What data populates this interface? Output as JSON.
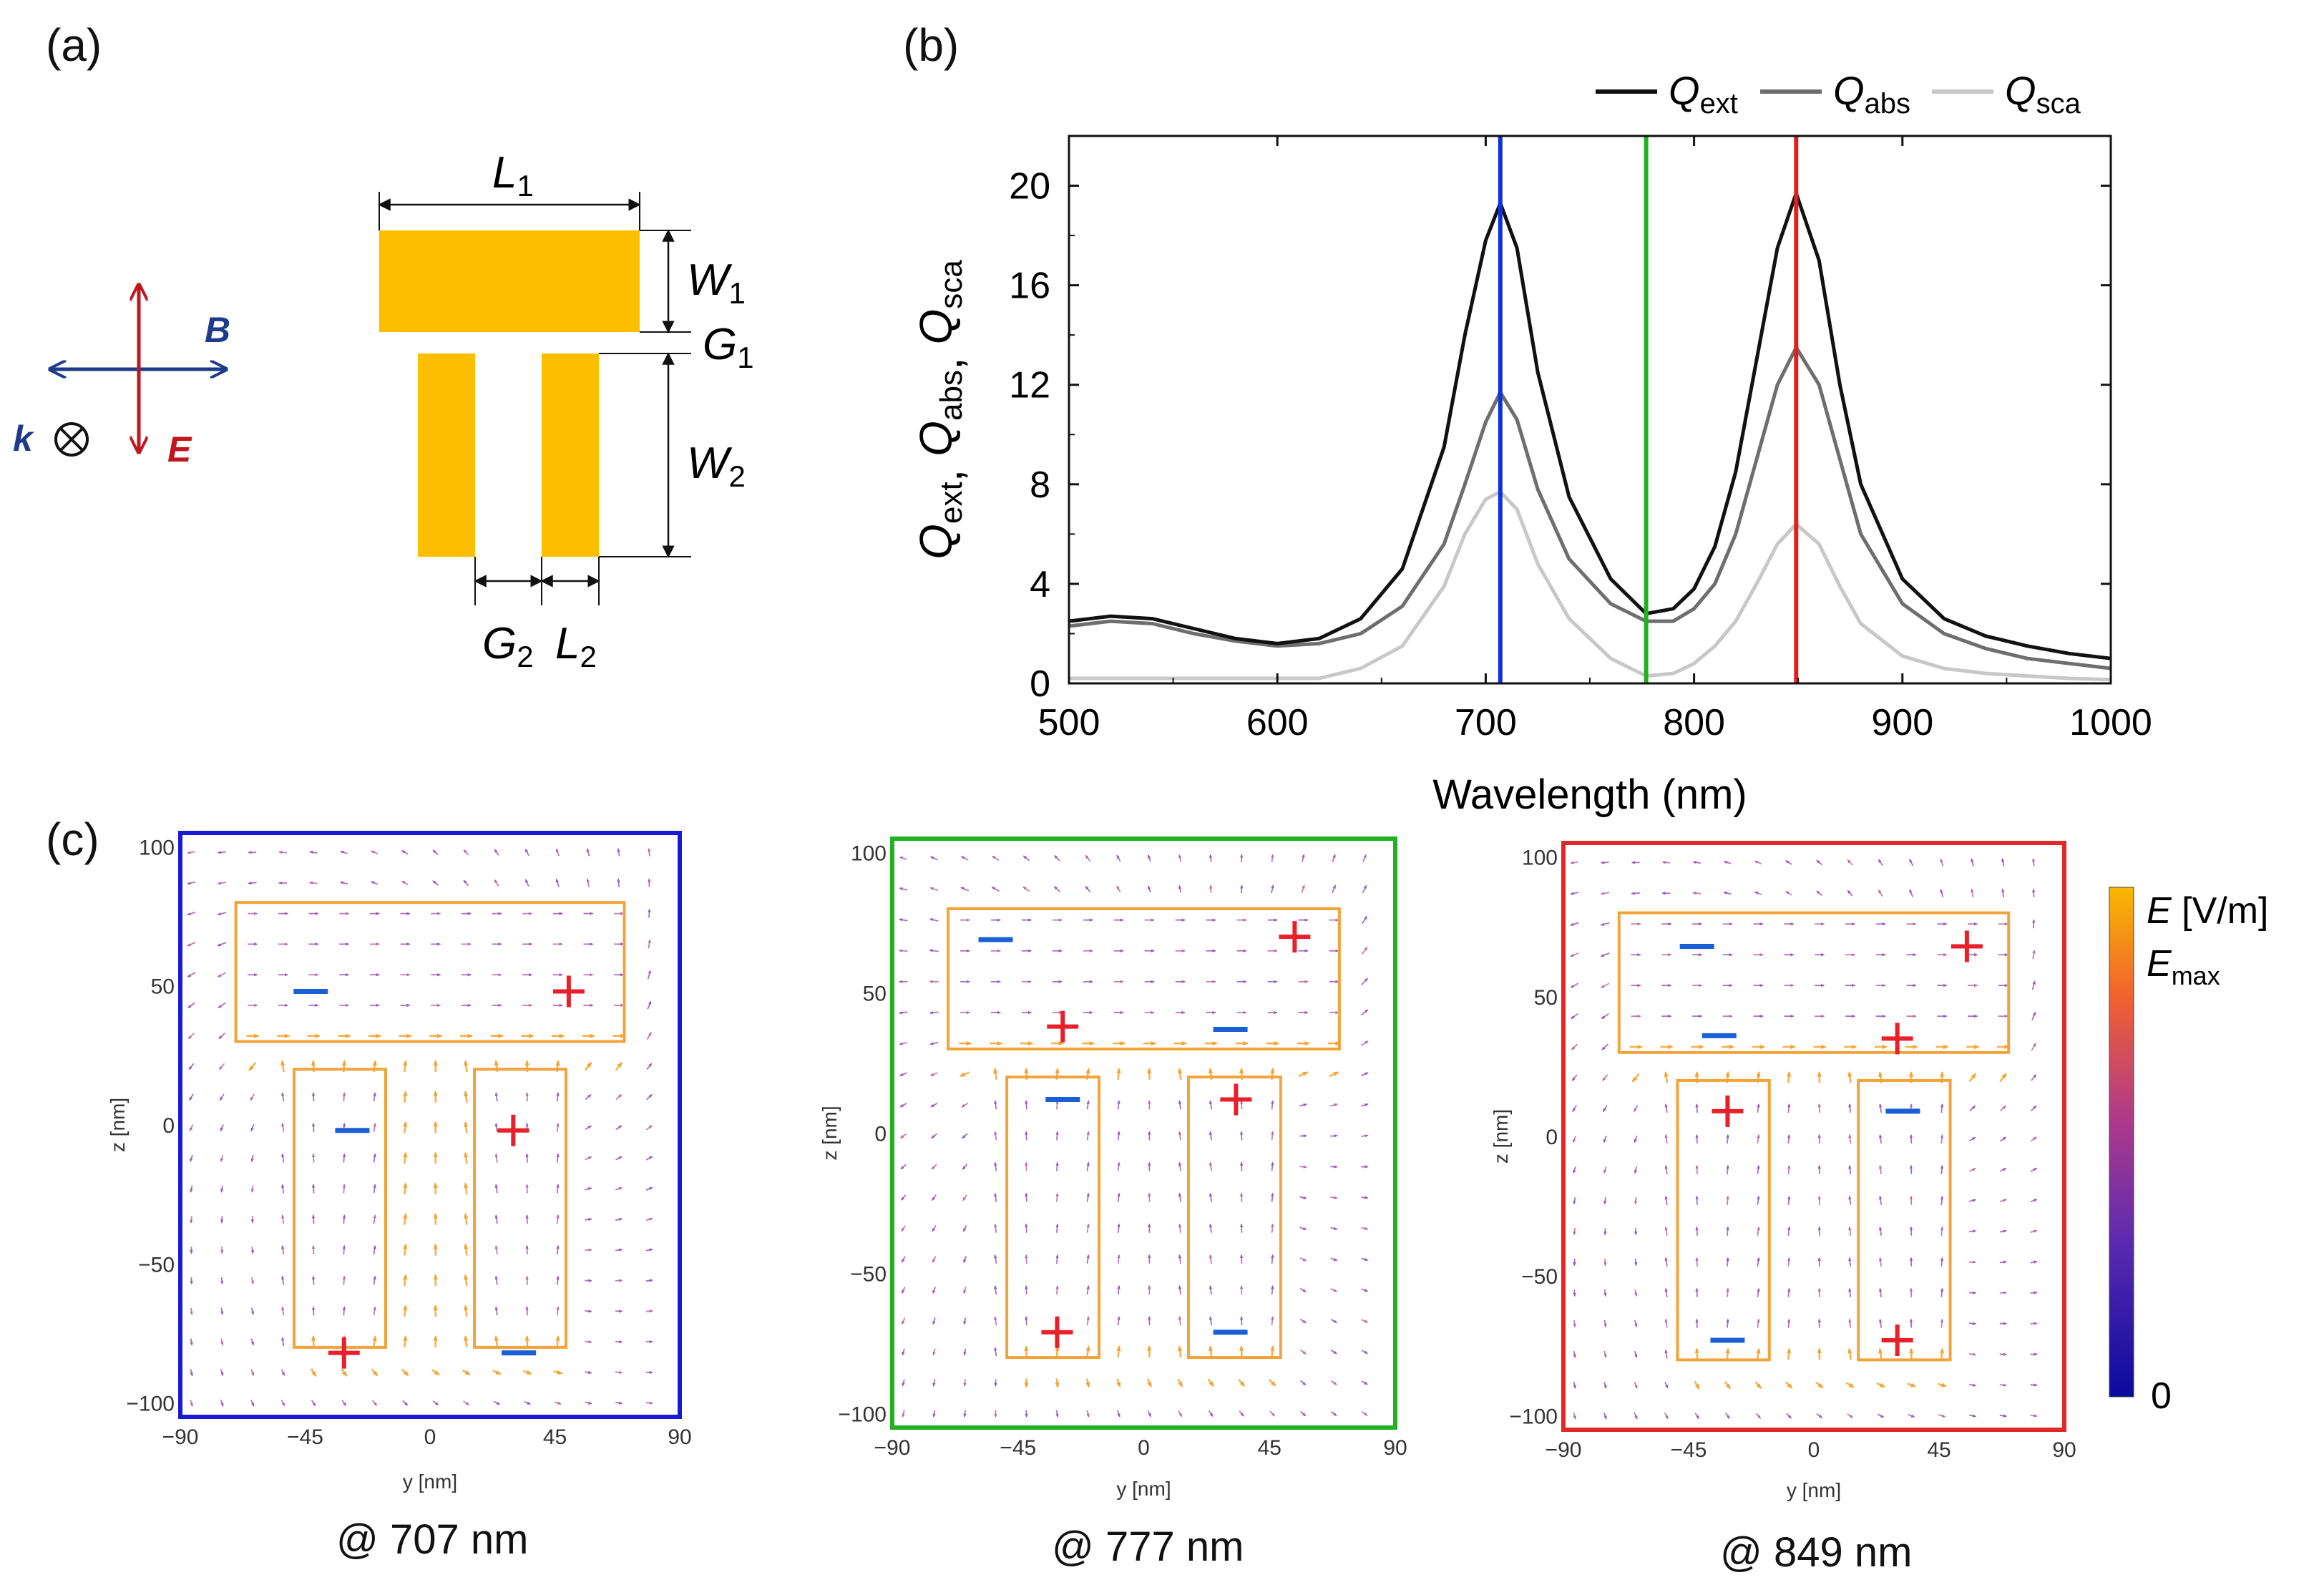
{
  "panels": {
    "a": "(a)",
    "b": "(b)",
    "c": "(c)"
  },
  "schematic": {
    "labels": {
      "L1": "L",
      "L1_sub": "1",
      "W1": "W",
      "W1_sub": "1",
      "G1": "G",
      "G1_sub": "1",
      "W2": "W",
      "W2_sub": "2",
      "G2": "G",
      "G2_sub": "2",
      "L2": "L",
      "L2_sub": "2"
    },
    "fields": {
      "B": "B",
      "E": "E",
      "k": "k"
    },
    "colors": {
      "gold": "#FDBE00",
      "field_blue": "#1f3a8a",
      "field_red": "#c0161d"
    }
  },
  "chart_data": {
    "type": "line",
    "x": [
      500,
      520,
      540,
      560,
      580,
      600,
      620,
      640,
      660,
      680,
      690,
      700,
      707,
      715,
      725,
      740,
      760,
      777,
      790,
      800,
      810,
      820,
      830,
      840,
      849,
      860,
      870,
      880,
      900,
      920,
      940,
      960,
      980,
      1000
    ],
    "series": [
      {
        "name": "Q_ext",
        "color": "#111111",
        "values": [
          2.5,
          2.7,
          2.6,
          2.2,
          1.8,
          1.6,
          1.8,
          2.6,
          4.6,
          9.5,
          14.0,
          17.8,
          19.3,
          17.5,
          12.5,
          7.5,
          4.2,
          2.8,
          3.0,
          3.8,
          5.5,
          8.5,
          13.0,
          17.5,
          19.7,
          17.0,
          12.0,
          8.0,
          4.2,
          2.6,
          1.9,
          1.5,
          1.2,
          1.0
        ]
      },
      {
        "name": "Q_abs",
        "color": "#6e6e6e",
        "values": [
          2.3,
          2.5,
          2.4,
          2.0,
          1.7,
          1.5,
          1.6,
          2.0,
          3.1,
          5.6,
          8.0,
          10.5,
          11.7,
          10.6,
          7.8,
          5.0,
          3.2,
          2.5,
          2.5,
          3.0,
          4.0,
          6.0,
          9.0,
          12.0,
          13.5,
          12.0,
          9.0,
          6.0,
          3.2,
          2.0,
          1.4,
          1.0,
          0.8,
          0.6
        ]
      },
      {
        "name": "Q_sca",
        "color": "#c8c8c8",
        "values": [
          0.2,
          0.2,
          0.2,
          0.2,
          0.2,
          0.2,
          0.2,
          0.6,
          1.5,
          3.9,
          6.0,
          7.4,
          7.7,
          7.0,
          4.8,
          2.6,
          1.0,
          0.3,
          0.4,
          0.8,
          1.5,
          2.5,
          4.0,
          5.6,
          6.4,
          5.6,
          3.9,
          2.4,
          1.1,
          0.6,
          0.4,
          0.3,
          0.2,
          0.15
        ]
      }
    ],
    "legend": [
      {
        "label": "Q",
        "sub": "ext",
        "color": "#111111"
      },
      {
        "label": "Q",
        "sub": "abs",
        "color": "#6e6e6e"
      },
      {
        "label": "Q",
        "sub": "sca",
        "color": "#c8c8c8"
      }
    ],
    "ylabel_parts": [
      {
        "t": "Q",
        "s": "ext"
      },
      {
        "t": "Q",
        "s": "abs"
      },
      {
        "t": "Q",
        "s": "sca"
      }
    ],
    "xlabel": "Wavelength (nm)",
    "xlim": [
      500,
      1000
    ],
    "ylim": [
      0,
      22
    ],
    "xticks": [
      500,
      600,
      700,
      800,
      900,
      1000
    ],
    "yticks": [
      0,
      4,
      8,
      12,
      16,
      20
    ],
    "vlines": [
      {
        "x": 707,
        "color": "#1030e0"
      },
      {
        "x": 777,
        "color": "#22b022"
      },
      {
        "x": 849,
        "color": "#e02020"
      }
    ],
    "legend_position": "top-right",
    "grid": false
  },
  "field_maps": {
    "xticks": [
      -90,
      -45,
      0,
      45,
      90
    ],
    "yticks": [
      100,
      50,
      0,
      -50,
      -100
    ],
    "xlabel": "y [nm]",
    "ylabel": "z [nm]",
    "maps": [
      {
        "wavelength_caption": "@ 707 nm",
        "frame_color": "#1a1ad6",
        "charges": [
          {
            "s": "-",
            "y": -43,
            "z": 48
          },
          {
            "s": "+",
            "y": 50,
            "z": 48
          },
          {
            "s": "-",
            "y": -28,
            "z": -2
          },
          {
            "s": "+",
            "y": 30,
            "z": -2
          },
          {
            "s": "+",
            "y": -31,
            "z": -82
          },
          {
            "s": "-",
            "y": 32,
            "z": -82
          }
        ]
      },
      {
        "wavelength_caption": "@ 777 nm",
        "frame_color": "#22b022",
        "charges": [
          {
            "s": "-",
            "y": -53,
            "z": 69
          },
          {
            "s": "+",
            "y": 54,
            "z": 70
          },
          {
            "s": "+",
            "y": -29,
            "z": 38
          },
          {
            "s": "-",
            "y": 31,
            "z": 37
          },
          {
            "s": "-",
            "y": -29,
            "z": 12
          },
          {
            "s": "+",
            "y": 33,
            "z": 12
          },
          {
            "s": "+",
            "y": -31,
            "z": -71
          },
          {
            "s": "-",
            "y": 31,
            "z": -71
          }
        ]
      },
      {
        "wavelength_caption": "@ 849 nm",
        "frame_color": "#e02a2a",
        "charges": [
          {
            "s": "-",
            "y": -42,
            "z": 68
          },
          {
            "s": "+",
            "y": 55,
            "z": 68
          },
          {
            "s": "-",
            "y": -34,
            "z": 36
          },
          {
            "s": "+",
            "y": 30,
            "z": 35
          },
          {
            "s": "+",
            "y": -31,
            "z": 9
          },
          {
            "s": "-",
            "y": 32,
            "z": 9
          },
          {
            "s": "-",
            "y": -31,
            "z": -73
          },
          {
            "s": "+",
            "y": 30,
            "z": -73
          }
        ]
      }
    ],
    "colorbar": {
      "label": "E",
      "unit": " [V/m]",
      "max_label": "E",
      "max_sub": "max",
      "min_label": "0",
      "stops": [
        "#0a0a9e",
        "#5a2ab0",
        "#b03a8a",
        "#f06030",
        "#f8b800"
      ]
    }
  }
}
